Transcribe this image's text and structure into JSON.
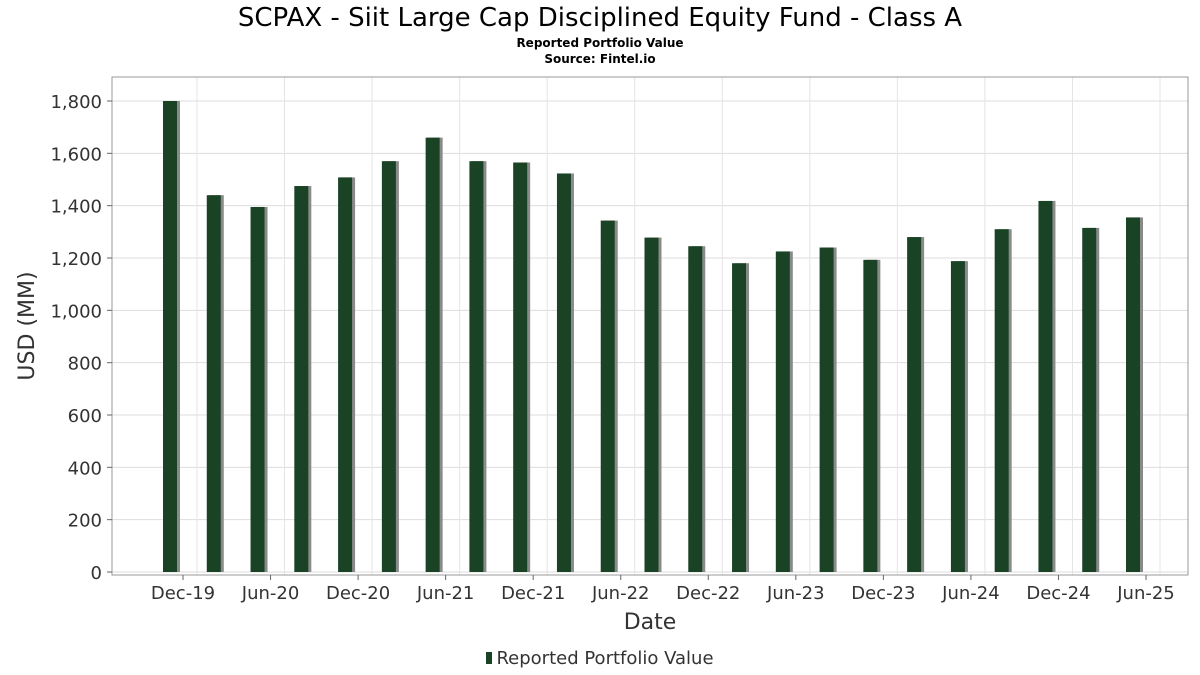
{
  "chart_data": {
    "type": "bar",
    "title": "SCPAX - Siit Large Cap Disciplined Equity Fund - Class A",
    "subtitle": [
      "Reported Portfolio Value",
      "Source: Fintel.io"
    ],
    "xlabel": "Date",
    "ylabel": "USD (MM)",
    "ylim": [
      0,
      1900
    ],
    "yticks": [
      0,
      200,
      400,
      600,
      800,
      1000,
      1200,
      1400,
      1600,
      1800
    ],
    "ytick_labels": [
      "0",
      "200",
      "400",
      "600",
      "800",
      "1,000",
      "1,200",
      "1,400",
      "1,600",
      "1,800"
    ],
    "xtick_labels": [
      "Dec-19",
      "Jun-20",
      "Dec-20",
      "Jun-21",
      "Dec-21",
      "Jun-22",
      "Dec-22",
      "Jun-23",
      "Dec-23",
      "Jun-24",
      "Dec-24",
      "Jun-25"
    ],
    "categories": [
      "Dec-19",
      "Mar-20",
      "Jun-20",
      "Sep-20",
      "Dec-20",
      "Mar-21",
      "Jun-21",
      "Sep-21",
      "Dec-21",
      "Mar-22",
      "Jun-22",
      "Sep-22",
      "Dec-22",
      "Mar-23",
      "Jun-23",
      "Sep-23",
      "Dec-23",
      "Mar-24",
      "Jun-24",
      "Sep-24",
      "Dec-24",
      "Mar-25",
      "Jun-25"
    ],
    "series": [
      {
        "name": "Reported Portfolio Value",
        "color": "#1a4224",
        "values": [
          1800,
          1440,
          1395,
          1475,
          1508,
          1570,
          1660,
          1570,
          1565,
          1523,
          1343,
          1278,
          1245,
          1180,
          1225,
          1240,
          1193,
          1280,
          1188,
          1310,
          1418,
          1315,
          1355
        ]
      }
    ],
    "grid": true,
    "legend": "bottom-center"
  }
}
